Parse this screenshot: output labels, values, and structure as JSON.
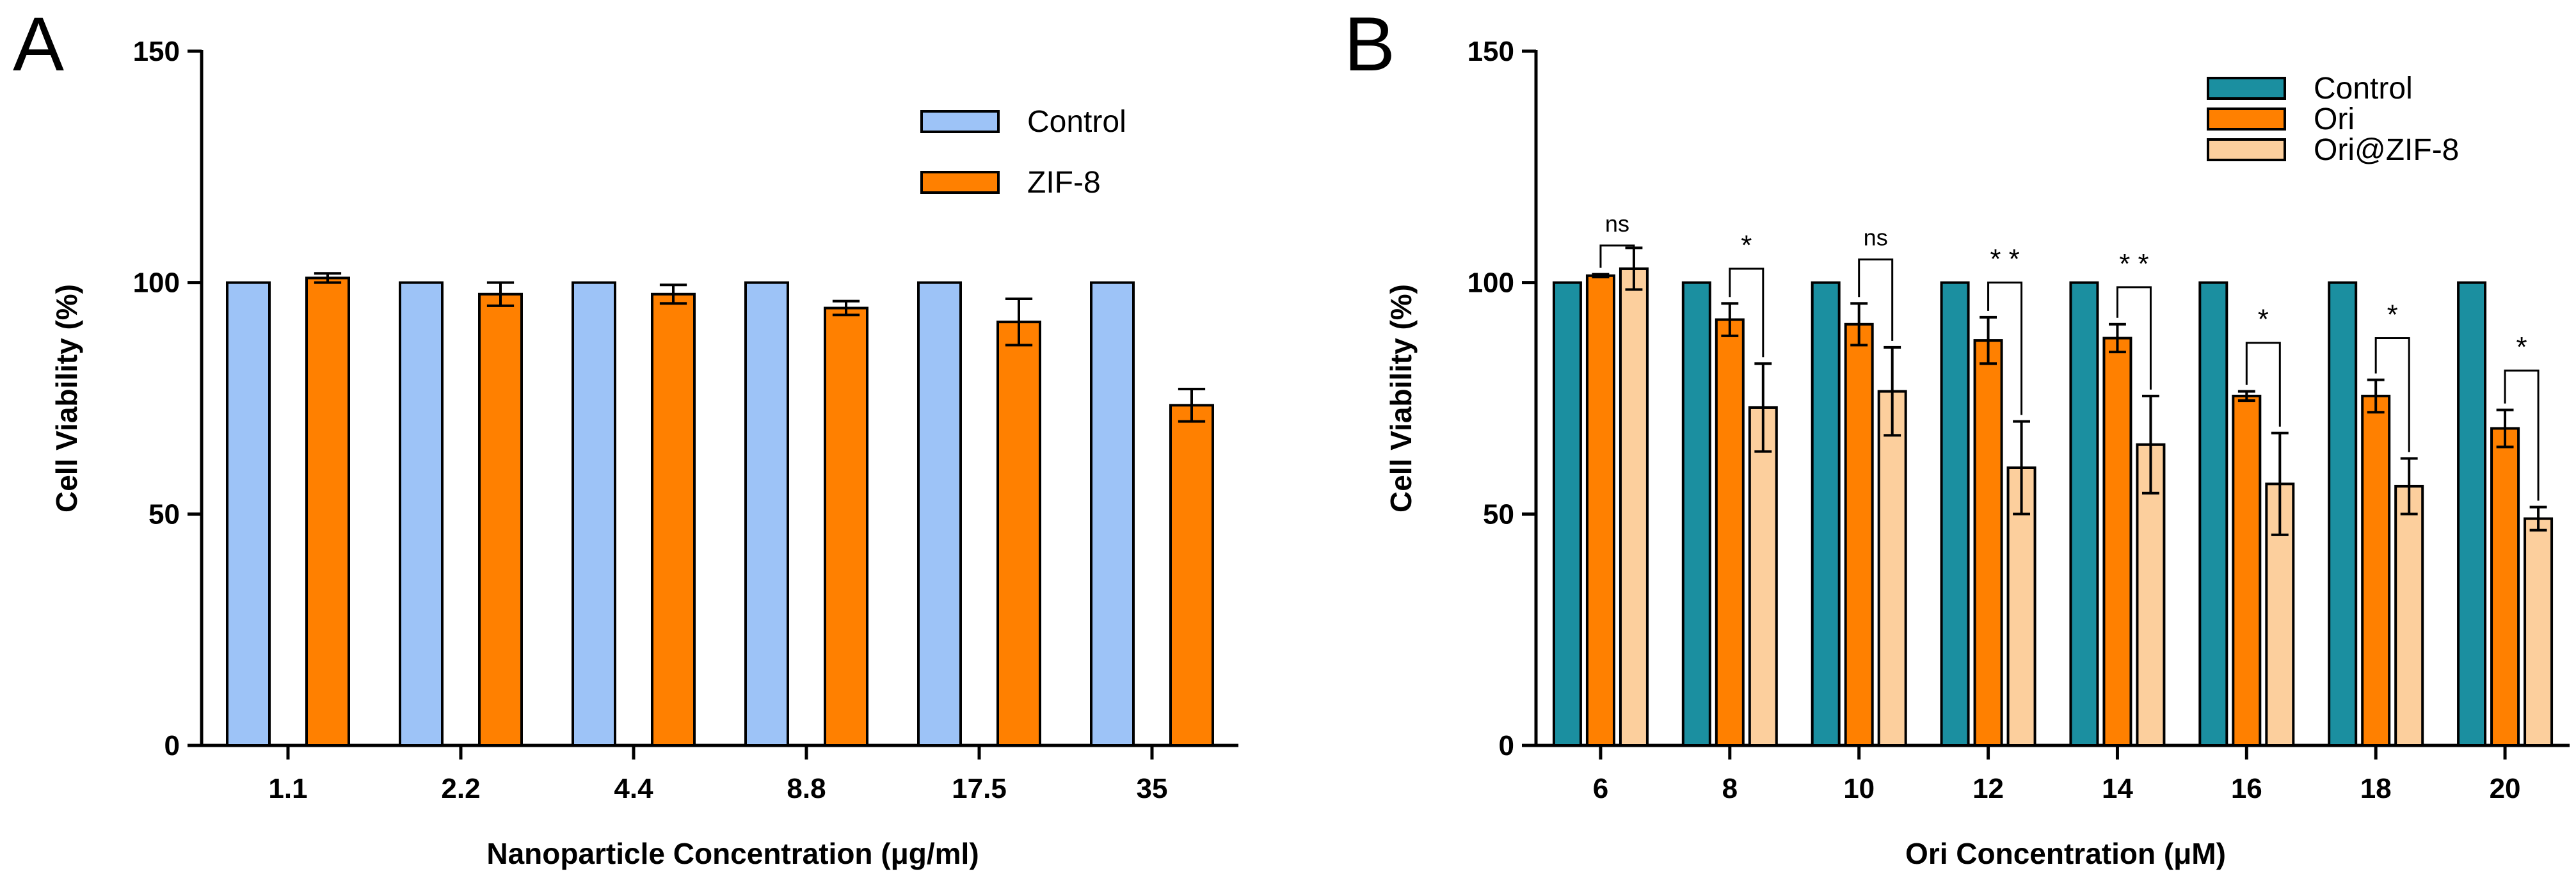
{
  "chart_data": [
    {
      "panel": "A",
      "type": "bar",
      "xlabel": "Nanoparticle Concentration (μg/ml)",
      "ylabel": "Cell Viability (%)",
      "ylim": [
        0,
        150
      ],
      "yticks": [
        0,
        50,
        100,
        150
      ],
      "categories": [
        "1.1",
        "2.2",
        "4.4",
        "8.8",
        "17.5",
        "35"
      ],
      "series": [
        {
          "name": "Control",
          "color": "#9dc3f7",
          "values": [
            100,
            100,
            100,
            100,
            100,
            100
          ],
          "errors": [
            0,
            0,
            0,
            0,
            0,
            0
          ]
        },
        {
          "name": "ZIF-8",
          "color": "#ff8000",
          "values": [
            101,
            97.5,
            97.5,
            94.5,
            91.5,
            73.5
          ],
          "errors": [
            1,
            2.5,
            2,
            1.5,
            5,
            3.5
          ]
        }
      ],
      "legend": "top-right",
      "annotations": []
    },
    {
      "panel": "B",
      "type": "bar",
      "xlabel": "Ori Concentration (μM)",
      "ylabel": "Cell Viability (%)",
      "ylim": [
        0,
        150
      ],
      "yticks": [
        0,
        50,
        100,
        150
      ],
      "categories": [
        "6",
        "8",
        "10",
        "12",
        "14",
        "16",
        "18",
        "20"
      ],
      "series": [
        {
          "name": "Control",
          "color": "#1b8fa0",
          "values": [
            100,
            100,
            100,
            100,
            100,
            100,
            100,
            100
          ],
          "errors": [
            0,
            0,
            0,
            0,
            0,
            0,
            0,
            0
          ]
        },
        {
          "name": "Ori",
          "color": "#ff8000",
          "values": [
            101.5,
            92,
            91,
            87.5,
            88,
            75.5,
            75.5,
            68.5
          ],
          "errors": [
            0.3,
            3.5,
            4.5,
            5,
            3,
            1,
            3.5,
            4
          ]
        },
        {
          "name": "Ori@ZIF-8",
          "color": "#fccf9d",
          "values": [
            103,
            73,
            76.5,
            60,
            65,
            56.5,
            56,
            49
          ],
          "errors": [
            4.5,
            9.5,
            9.5,
            10,
            10.5,
            11,
            6,
            2.5
          ]
        }
      ],
      "legend": "top-right",
      "annotations": [
        "ns",
        "*",
        "ns",
        "* *",
        "* *",
        "*",
        "*",
        "*"
      ]
    }
  ]
}
